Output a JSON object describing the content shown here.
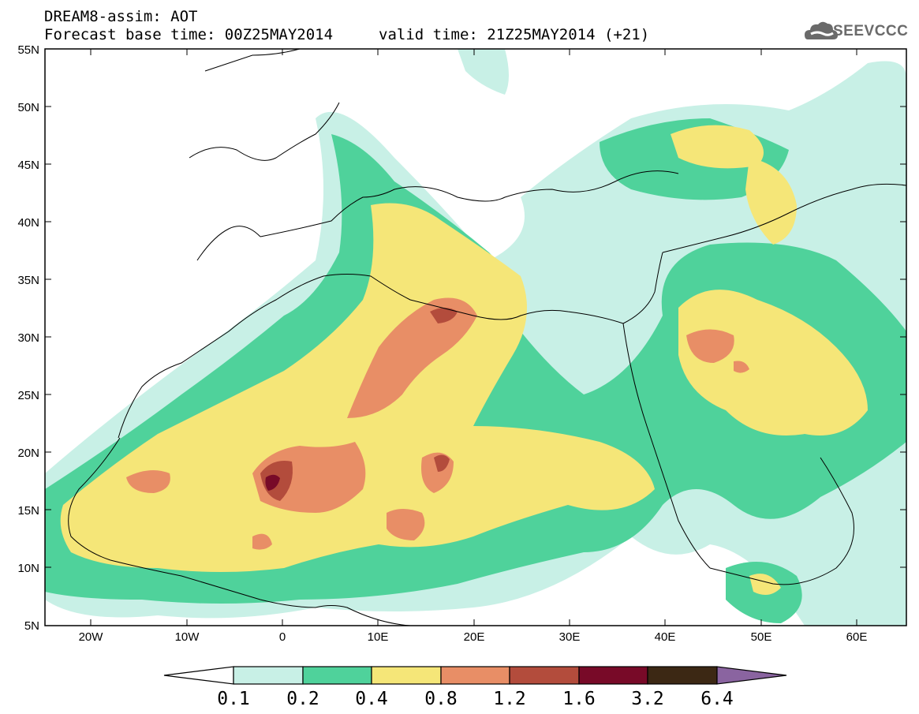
{
  "header": {
    "line1": "DREAM8-assim: AOT",
    "line2_left": "Forecast base time: 00Z25MAY2014",
    "line2_right": "valid time: 21Z25MAY2014 (+21)",
    "logo_text": "SEEVCCC"
  },
  "map": {
    "lat_labels": [
      "55N",
      "50N",
      "45N",
      "40N",
      "35N",
      "30N",
      "25N",
      "20N",
      "15N",
      "10N",
      "5N"
    ],
    "lon_labels": [
      "20W",
      "10W",
      "0",
      "10E",
      "20E",
      "30E",
      "40E",
      "50E",
      "60E"
    ]
  },
  "colorbar": {
    "labels": [
      "0.1",
      "0.2",
      "0.4",
      "0.8",
      "1.2",
      "1.6",
      "3.2",
      "6.4"
    ],
    "colors": [
      "#ffffff",
      "#c8f0e6",
      "#4fd29b",
      "#f5e678",
      "#e88e66",
      "#b34c3c",
      "#780a28",
      "#3c2814",
      "#8a64a0"
    ]
  }
}
